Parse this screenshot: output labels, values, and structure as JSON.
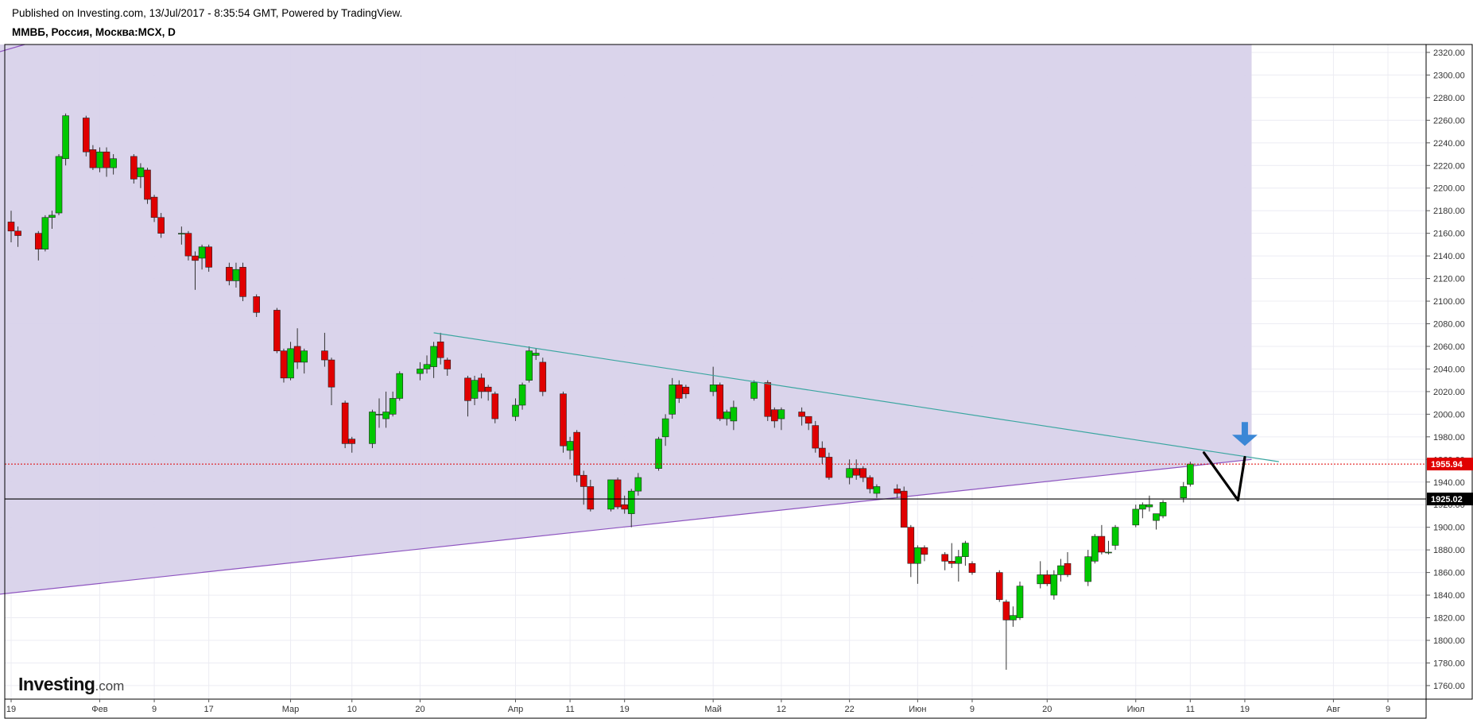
{
  "header": {
    "published": "Published on Investing.com, 13/Jul/2017 - 8:35:54 GMT, Powered by TradingView.",
    "symbol": "ММВБ, Россия, Москва:MCX, D"
  },
  "logo": {
    "main": "Investing",
    "suffix": ".com"
  },
  "colors": {
    "up": "#00c800",
    "down": "#e00000",
    "wick": "#333333",
    "zone_fill": "#d8d2ea",
    "lower_line": "#8e55c0",
    "upper_line": "#3aa6a0",
    "price_line": "#e00000",
    "level_line": "#000000",
    "arrow": "#3b87d6"
  },
  "chart_data": {
    "type": "candlestick",
    "ylim": [
      1748,
      2327
    ],
    "y_ticks": [
      1760,
      1780,
      1800,
      1820,
      1840,
      1860,
      1880,
      1900,
      1920,
      1940,
      1960,
      1980,
      2000,
      2020,
      2040,
      2060,
      2080,
      2100,
      2120,
      2140,
      2160,
      2180,
      2200,
      2220,
      2240,
      2260,
      2280,
      2300,
      2320
    ],
    "x_labels": [
      {
        "label": "19",
        "date": "2017-01-19"
      },
      {
        "label": "Фев",
        "date": "2017-02-01"
      },
      {
        "label": "9",
        "date": "2017-02-09"
      },
      {
        "label": "17",
        "date": "2017-02-17"
      },
      {
        "label": "Мар",
        "date": "2017-03-01"
      },
      {
        "label": "10",
        "date": "2017-03-10"
      },
      {
        "label": "20",
        "date": "2017-03-20"
      },
      {
        "label": "Апр",
        "date": "2017-04-03"
      },
      {
        "label": "11",
        "date": "2017-04-11"
      },
      {
        "label": "19",
        "date": "2017-04-19"
      },
      {
        "label": "Май",
        "date": "2017-05-02"
      },
      {
        "label": "12",
        "date": "2017-05-12"
      },
      {
        "label": "22",
        "date": "2017-05-22"
      },
      {
        "label": "Июн",
        "date": "2017-06-01"
      },
      {
        "label": "9",
        "date": "2017-06-09"
      },
      {
        "label": "20",
        "date": "2017-06-20"
      },
      {
        "label": "Июл",
        "date": "2017-07-03"
      },
      {
        "label": "11",
        "date": "2017-07-11"
      },
      {
        "label": "19",
        "date": "2017-07-19"
      },
      {
        "label": "Авг",
        "date": "2017-08-01"
      },
      {
        "label": "9",
        "date": "2017-08-09"
      }
    ],
    "candles": [
      {
        "date": "2017-01-19",
        "o": 2170,
        "h": 2180,
        "l": 2152,
        "c": 2162
      },
      {
        "date": "2017-01-20",
        "o": 2162,
        "h": 2166,
        "l": 2148,
        "c": 2158
      },
      {
        "date": "2017-01-23",
        "o": 2160,
        "h": 2162,
        "l": 2136,
        "c": 2146
      },
      {
        "date": "2017-01-24",
        "o": 2146,
        "h": 2176,
        "l": 2144,
        "c": 2174
      },
      {
        "date": "2017-01-25",
        "o": 2174,
        "h": 2180,
        "l": 2164,
        "c": 2176
      },
      {
        "date": "2017-01-26",
        "o": 2178,
        "h": 2230,
        "l": 2176,
        "c": 2228
      },
      {
        "date": "2017-01-27",
        "o": 2226,
        "h": 2266,
        "l": 2220,
        "c": 2264
      },
      {
        "date": "2017-01-30",
        "o": 2262,
        "h": 2264,
        "l": 2228,
        "c": 2232
      },
      {
        "date": "2017-01-31",
        "o": 2234,
        "h": 2238,
        "l": 2216,
        "c": 2218
      },
      {
        "date": "2017-02-01",
        "o": 2218,
        "h": 2236,
        "l": 2214,
        "c": 2232
      },
      {
        "date": "2017-02-02",
        "o": 2232,
        "h": 2236,
        "l": 2210,
        "c": 2218
      },
      {
        "date": "2017-02-03",
        "o": 2218,
        "h": 2230,
        "l": 2212,
        "c": 2226
      },
      {
        "date": "2017-02-06",
        "o": 2228,
        "h": 2230,
        "l": 2204,
        "c": 2208
      },
      {
        "date": "2017-02-07",
        "o": 2210,
        "h": 2222,
        "l": 2200,
        "c": 2218
      },
      {
        "date": "2017-02-08",
        "o": 2216,
        "h": 2218,
        "l": 2186,
        "c": 2190
      },
      {
        "date": "2017-02-09",
        "o": 2192,
        "h": 2194,
        "l": 2170,
        "c": 2174
      },
      {
        "date": "2017-02-10",
        "o": 2174,
        "h": 2178,
        "l": 2156,
        "c": 2160
      },
      {
        "date": "2017-02-13",
        "o": 2160,
        "h": 2166,
        "l": 2150,
        "c": 2160
      },
      {
        "date": "2017-02-14",
        "o": 2160,
        "h": 2162,
        "l": 2136,
        "c": 2140
      },
      {
        "date": "2017-02-15",
        "o": 2140,
        "h": 2144,
        "l": 2110,
        "c": 2136
      },
      {
        "date": "2017-02-16",
        "o": 2138,
        "h": 2150,
        "l": 2128,
        "c": 2148
      },
      {
        "date": "2017-02-17",
        "o": 2148,
        "h": 2150,
        "l": 2126,
        "c": 2130
      },
      {
        "date": "2017-02-20",
        "o": 2130,
        "h": 2134,
        "l": 2114,
        "c": 2118
      },
      {
        "date": "2017-02-21",
        "o": 2118,
        "h": 2134,
        "l": 2112,
        "c": 2128
      },
      {
        "date": "2017-02-22",
        "o": 2130,
        "h": 2134,
        "l": 2100,
        "c": 2104
      },
      {
        "date": "2017-02-24",
        "o": 2104,
        "h": 2106,
        "l": 2086,
        "c": 2090
      },
      {
        "date": "2017-02-27",
        "o": 2092,
        "h": 2094,
        "l": 2054,
        "c": 2056
      },
      {
        "date": "2017-02-28",
        "o": 2056,
        "h": 2058,
        "l": 2028,
        "c": 2032
      },
      {
        "date": "2017-03-01",
        "o": 2032,
        "h": 2064,
        "l": 2030,
        "c": 2058
      },
      {
        "date": "2017-03-02",
        "o": 2060,
        "h": 2076,
        "l": 2040,
        "c": 2046
      },
      {
        "date": "2017-03-03",
        "o": 2046,
        "h": 2058,
        "l": 2036,
        "c": 2056
      },
      {
        "date": "2017-03-06",
        "o": 2056,
        "h": 2072,
        "l": 2042,
        "c": 2048
      },
      {
        "date": "2017-03-07",
        "o": 2048,
        "h": 2050,
        "l": 2008,
        "c": 2024
      },
      {
        "date": "2017-03-09",
        "o": 2010,
        "h": 2012,
        "l": 1970,
        "c": 1974
      },
      {
        "date": "2017-03-10",
        "o": 1978,
        "h": 1980,
        "l": 1966,
        "c": 1974
      },
      {
        "date": "2017-03-13",
        "o": 1974,
        "h": 2004,
        "l": 1970,
        "c": 2002
      },
      {
        "date": "2017-03-14",
        "o": 2000,
        "h": 2014,
        "l": 1988,
        "c": 2000
      },
      {
        "date": "2017-03-15",
        "o": 1996,
        "h": 2020,
        "l": 1988,
        "c": 2002
      },
      {
        "date": "2017-03-16",
        "o": 2000,
        "h": 2020,
        "l": 1998,
        "c": 2014
      },
      {
        "date": "2017-03-17",
        "o": 2014,
        "h": 2038,
        "l": 2012,
        "c": 2036
      },
      {
        "date": "2017-03-20",
        "o": 2036,
        "h": 2046,
        "l": 2030,
        "c": 2040
      },
      {
        "date": "2017-03-21",
        "o": 2040,
        "h": 2052,
        "l": 2036,
        "c": 2044
      },
      {
        "date": "2017-03-22",
        "o": 2042,
        "h": 2064,
        "l": 2032,
        "c": 2060
      },
      {
        "date": "2017-03-23",
        "o": 2064,
        "h": 2072,
        "l": 2044,
        "c": 2050
      },
      {
        "date": "2017-03-24",
        "o": 2048,
        "h": 2050,
        "l": 2034,
        "c": 2040
      },
      {
        "date": "2017-03-27",
        "o": 2032,
        "h": 2034,
        "l": 1998,
        "c": 2012
      },
      {
        "date": "2017-03-28",
        "o": 2014,
        "h": 2034,
        "l": 2008,
        "c": 2030
      },
      {
        "date": "2017-03-29",
        "o": 2032,
        "h": 2036,
        "l": 2014,
        "c": 2020
      },
      {
        "date": "2017-03-30",
        "o": 2024,
        "h": 2026,
        "l": 2012,
        "c": 2020
      },
      {
        "date": "2017-03-31",
        "o": 2018,
        "h": 2020,
        "l": 1992,
        "c": 1996
      },
      {
        "date": "2017-04-03",
        "o": 1998,
        "h": 2014,
        "l": 1994,
        "c": 2008
      },
      {
        "date": "2017-04-04",
        "o": 2008,
        "h": 2028,
        "l": 2004,
        "c": 2026
      },
      {
        "date": "2017-04-05",
        "o": 2030,
        "h": 2060,
        "l": 2028,
        "c": 2056
      },
      {
        "date": "2017-04-06",
        "o": 2052,
        "h": 2058,
        "l": 2048,
        "c": 2054
      },
      {
        "date": "2017-04-07",
        "o": 2046,
        "h": 2050,
        "l": 2016,
        "c": 2020
      },
      {
        "date": "2017-04-10",
        "o": 2018,
        "h": 2020,
        "l": 1966,
        "c": 1972
      },
      {
        "date": "2017-04-11",
        "o": 1968,
        "h": 1980,
        "l": 1960,
        "c": 1976
      },
      {
        "date": "2017-04-12",
        "o": 1984,
        "h": 1986,
        "l": 1940,
        "c": 1946
      },
      {
        "date": "2017-04-13",
        "o": 1946,
        "h": 1950,
        "l": 1920,
        "c": 1936
      },
      {
        "date": "2017-04-14",
        "o": 1936,
        "h": 1942,
        "l": 1914,
        "c": 1916
      },
      {
        "date": "2017-04-17",
        "o": 1916,
        "h": 1942,
        "l": 1914,
        "c": 1942
      },
      {
        "date": "2017-04-18",
        "o": 1942,
        "h": 1944,
        "l": 1916,
        "c": 1918
      },
      {
        "date": "2017-04-19",
        "o": 1920,
        "h": 1928,
        "l": 1912,
        "c": 1916
      },
      {
        "date": "2017-04-20",
        "o": 1912,
        "h": 1934,
        "l": 1900,
        "c": 1932
      },
      {
        "date": "2017-04-21",
        "o": 1932,
        "h": 1948,
        "l": 1928,
        "c": 1944
      },
      {
        "date": "2017-04-24",
        "o": 1952,
        "h": 1980,
        "l": 1950,
        "c": 1978
      },
      {
        "date": "2017-04-25",
        "o": 1980,
        "h": 2000,
        "l": 1972,
        "c": 1996
      },
      {
        "date": "2017-04-26",
        "o": 2000,
        "h": 2032,
        "l": 1996,
        "c": 2026
      },
      {
        "date": "2017-04-27",
        "o": 2026,
        "h": 2030,
        "l": 2010,
        "c": 2014
      },
      {
        "date": "2017-04-28",
        "o": 2024,
        "h": 2026,
        "l": 2014,
        "c": 2018
      },
      {
        "date": "2017-05-02",
        "o": 2020,
        "h": 2042,
        "l": 2016,
        "c": 2026
      },
      {
        "date": "2017-05-03",
        "o": 2026,
        "h": 2028,
        "l": 1994,
        "c": 1996
      },
      {
        "date": "2017-05-04",
        "o": 1996,
        "h": 2004,
        "l": 1990,
        "c": 2002
      },
      {
        "date": "2017-05-05",
        "o": 1994,
        "h": 2012,
        "l": 1986,
        "c": 2006
      },
      {
        "date": "2017-05-08",
        "o": 2014,
        "h": 2030,
        "l": 2012,
        "c": 2028
      },
      {
        "date": "2017-05-10",
        "o": 2028,
        "h": 2030,
        "l": 1994,
        "c": 1998
      },
      {
        "date": "2017-05-11",
        "o": 2004,
        "h": 2006,
        "l": 1988,
        "c": 1994
      },
      {
        "date": "2017-05-12",
        "o": 1996,
        "h": 2006,
        "l": 1986,
        "c": 2004
      },
      {
        "date": "2017-05-15",
        "o": 2002,
        "h": 2006,
        "l": 1990,
        "c": 1998
      },
      {
        "date": "2017-05-16",
        "o": 1998,
        "h": 1998,
        "l": 1986,
        "c": 1992
      },
      {
        "date": "2017-05-17",
        "o": 1990,
        "h": 1994,
        "l": 1966,
        "c": 1970
      },
      {
        "date": "2017-05-18",
        "o": 1970,
        "h": 1976,
        "l": 1956,
        "c": 1962
      },
      {
        "date": "2017-05-19",
        "o": 1962,
        "h": 1966,
        "l": 1942,
        "c": 1944
      },
      {
        "date": "2017-05-22",
        "o": 1944,
        "h": 1960,
        "l": 1938,
        "c": 1952
      },
      {
        "date": "2017-05-23",
        "o": 1952,
        "h": 1960,
        "l": 1942,
        "c": 1946
      },
      {
        "date": "2017-05-24",
        "o": 1952,
        "h": 1954,
        "l": 1940,
        "c": 1944
      },
      {
        "date": "2017-05-25",
        "o": 1944,
        "h": 1946,
        "l": 1930,
        "c": 1934
      },
      {
        "date": "2017-05-26",
        "o": 1930,
        "h": 1938,
        "l": 1926,
        "c": 1936
      },
      {
        "date": "2017-05-29",
        "o": 1934,
        "h": 1938,
        "l": 1926,
        "c": 1930
      },
      {
        "date": "2017-05-30",
        "o": 1932,
        "h": 1936,
        "l": 1900,
        "c": 1900
      },
      {
        "date": "2017-05-31",
        "o": 1900,
        "h": 1902,
        "l": 1856,
        "c": 1868
      },
      {
        "date": "2017-06-01",
        "o": 1868,
        "h": 1884,
        "l": 1850,
        "c": 1882
      },
      {
        "date": "2017-06-02",
        "o": 1882,
        "h": 1884,
        "l": 1870,
        "c": 1876
      },
      {
        "date": "2017-06-05",
        "o": 1876,
        "h": 1878,
        "l": 1862,
        "c": 1870
      },
      {
        "date": "2017-06-06",
        "o": 1870,
        "h": 1886,
        "l": 1864,
        "c": 1868
      },
      {
        "date": "2017-06-07",
        "o": 1868,
        "h": 1880,
        "l": 1852,
        "c": 1874
      },
      {
        "date": "2017-06-08",
        "o": 1874,
        "h": 1888,
        "l": 1866,
        "c": 1886
      },
      {
        "date": "2017-06-09",
        "o": 1868,
        "h": 1870,
        "l": 1858,
        "c": 1860
      },
      {
        "date": "2017-06-13",
        "o": 1860,
        "h": 1862,
        "l": 1834,
        "c": 1836
      },
      {
        "date": "2017-06-14",
        "o": 1834,
        "h": 1836,
        "l": 1774,
        "c": 1818
      },
      {
        "date": "2017-06-15",
        "o": 1818,
        "h": 1830,
        "l": 1812,
        "c": 1822
      },
      {
        "date": "2017-06-16",
        "o": 1820,
        "h": 1852,
        "l": 1818,
        "c": 1848
      },
      {
        "date": "2017-06-19",
        "o": 1850,
        "h": 1870,
        "l": 1846,
        "c": 1858
      },
      {
        "date": "2017-06-20",
        "o": 1858,
        "h": 1862,
        "l": 1848,
        "c": 1850
      },
      {
        "date": "2017-06-21",
        "o": 1840,
        "h": 1862,
        "l": 1836,
        "c": 1858
      },
      {
        "date": "2017-06-22",
        "o": 1858,
        "h": 1872,
        "l": 1852,
        "c": 1866
      },
      {
        "date": "2017-06-23",
        "o": 1868,
        "h": 1878,
        "l": 1856,
        "c": 1858
      },
      {
        "date": "2017-06-26",
        "o": 1852,
        "h": 1880,
        "l": 1848,
        "c": 1874
      },
      {
        "date": "2017-06-27",
        "o": 1870,
        "h": 1894,
        "l": 1868,
        "c": 1892
      },
      {
        "date": "2017-06-28",
        "o": 1892,
        "h": 1902,
        "l": 1876,
        "c": 1878
      },
      {
        "date": "2017-06-29",
        "o": 1878,
        "h": 1888,
        "l": 1876,
        "c": 1878
      },
      {
        "date": "2017-06-30",
        "o": 1884,
        "h": 1902,
        "l": 1880,
        "c": 1900
      },
      {
        "date": "2017-07-03",
        "o": 1902,
        "h": 1920,
        "l": 1900,
        "c": 1916
      },
      {
        "date": "2017-07-04",
        "o": 1916,
        "h": 1922,
        "l": 1908,
        "c": 1920
      },
      {
        "date": "2017-07-05",
        "o": 1918,
        "h": 1928,
        "l": 1914,
        "c": 1920
      },
      {
        "date": "2017-07-06",
        "o": 1906,
        "h": 1912,
        "l": 1898,
        "c": 1912
      },
      {
        "date": "2017-07-07",
        "o": 1910,
        "h": 1924,
        "l": 1908,
        "c": 1922
      },
      {
        "date": "2017-07-10",
        "o": 1926,
        "h": 1940,
        "l": 1922,
        "c": 1936
      },
      {
        "date": "2017-07-11",
        "o": 1938,
        "h": 1958,
        "l": 1936,
        "c": 1955.94
      }
    ],
    "annotations": {
      "zone": {
        "x0": "2017-01-13",
        "x1": "2017-07-20",
        "y_top": 2327,
        "lower": {
          "x0": "2017-01-13",
          "y0": 1838,
          "x1": "2017-07-20",
          "y1": 1960
        }
      },
      "upper_line": {
        "x0": "2017-03-22",
        "y0": 2072,
        "x1": "2017-07-24",
        "y1": 1958
      },
      "current_price": {
        "value": 1955.94,
        "label": "1955.94"
      },
      "level": {
        "value": 1925.02,
        "label": "1925.02"
      },
      "zigzag": [
        {
          "date": "2017-07-13",
          "y": 1966
        },
        {
          "date": "2017-07-18",
          "y": 1924
        },
        {
          "date": "2017-07-19",
          "y": 1962
        }
      ],
      "arrow": {
        "date": "2017-07-19",
        "y": 1972
      }
    }
  }
}
